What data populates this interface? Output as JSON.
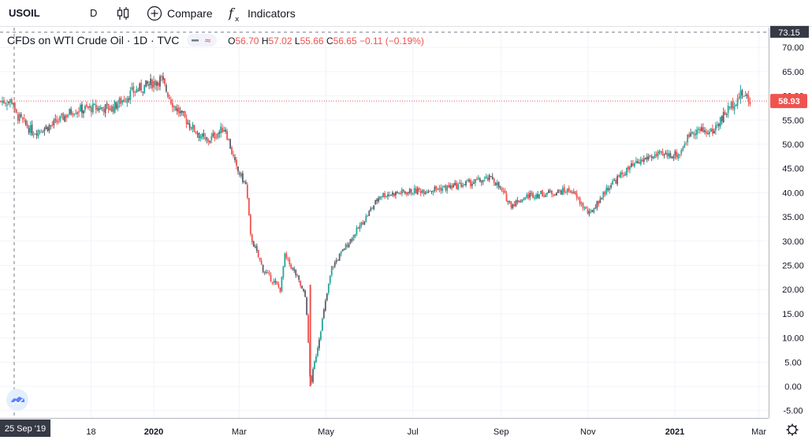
{
  "toolbar": {
    "symbol": "USOIL",
    "interval": "D",
    "compare_label": "Compare",
    "indicators_label": "Indicators"
  },
  "legend": {
    "name": "CFDs on WTI Crude Oil · 1D · TVC",
    "open_label": "O",
    "open": "56.70",
    "high_label": "H",
    "high": "57.02",
    "low_label": "L",
    "low": "55.66",
    "close_label": "C",
    "close": "56.65",
    "change": "−0.11 (−0.19%)"
  },
  "icons": [
    "candles-icon",
    "compare-plus-icon",
    "fx-icon",
    "tradingview-logo-icon",
    "settings-gear-icon"
  ],
  "colors": {
    "up": "#26a69a",
    "down": "#ef5350",
    "candle_gray": "#5d606b",
    "price_line": "#ef5350",
    "grid": "#f0f3fa"
  },
  "chart_data": {
    "type": "candlestick",
    "symbol": "USOIL",
    "ylim": [
      -5,
      73.15
    ],
    "y_ticks": [
      "-5.00",
      "0.00",
      "5.00",
      "10.00",
      "15.00",
      "20.00",
      "25.00",
      "30.00",
      "35.00",
      "40.00",
      "45.00",
      "50.00",
      "55.00",
      "60.00",
      "65.00",
      "70.00"
    ],
    "x_ticks": [
      "18",
      "2020",
      "Mar",
      "May",
      "Jul",
      "Sep",
      "Nov",
      "2021",
      "Mar"
    ],
    "crosshair_date": "25 Sep '19",
    "crosshair_price": "73.15",
    "last_price": "58.93",
    "series_close": [
      [
        "2019-09-25",
        56.5
      ],
      [
        "2019-10-08",
        52.5
      ],
      [
        "2019-10-22",
        54.0
      ],
      [
        "2019-11-05",
        57.0
      ],
      [
        "2019-11-19",
        57.5
      ],
      [
        "2019-12-03",
        57.5
      ],
      [
        "2019-12-17",
        60.8
      ],
      [
        "2020-01-06",
        63.5
      ],
      [
        "2020-01-15",
        58.0
      ],
      [
        "2020-01-28",
        53.5
      ],
      [
        "2020-02-07",
        50.5
      ],
      [
        "2020-02-20",
        53.5
      ],
      [
        "2020-02-28",
        45.0
      ],
      [
        "2020-03-06",
        41.5
      ],
      [
        "2020-03-09",
        31.0
      ],
      [
        "2020-03-18",
        24.0
      ],
      [
        "2020-03-30",
        20.0
      ],
      [
        "2020-04-02",
        27.0
      ],
      [
        "2020-04-10",
        23.0
      ],
      [
        "2020-04-17",
        18.0
      ],
      [
        "2020-04-20",
        0.0
      ],
      [
        "2020-04-28",
        13.0
      ],
      [
        "2020-05-05",
        24.5
      ],
      [
        "2020-05-15",
        29.0
      ],
      [
        "2020-05-27",
        34.0
      ],
      [
        "2020-06-08",
        39.5
      ],
      [
        "2020-06-22",
        40.0
      ],
      [
        "2020-07-08",
        40.5
      ],
      [
        "2020-07-24",
        41.0
      ],
      [
        "2020-08-10",
        42.0
      ],
      [
        "2020-08-26",
        43.0
      ],
      [
        "2020-09-08",
        37.5
      ],
      [
        "2020-09-21",
        39.5
      ],
      [
        "2020-10-06",
        40.0
      ],
      [
        "2020-10-20",
        40.5
      ],
      [
        "2020-11-02",
        35.5
      ],
      [
        "2020-11-16",
        41.5
      ],
      [
        "2020-11-30",
        45.0
      ],
      [
        "2020-12-14",
        47.5
      ],
      [
        "2021-01-04",
        48.0
      ],
      [
        "2021-01-13",
        53.0
      ],
      [
        "2021-01-27",
        52.5
      ],
      [
        "2021-02-08",
        57.5
      ],
      [
        "2021-02-17",
        60.5
      ],
      [
        "2021-02-23",
        58.9
      ]
    ]
  }
}
